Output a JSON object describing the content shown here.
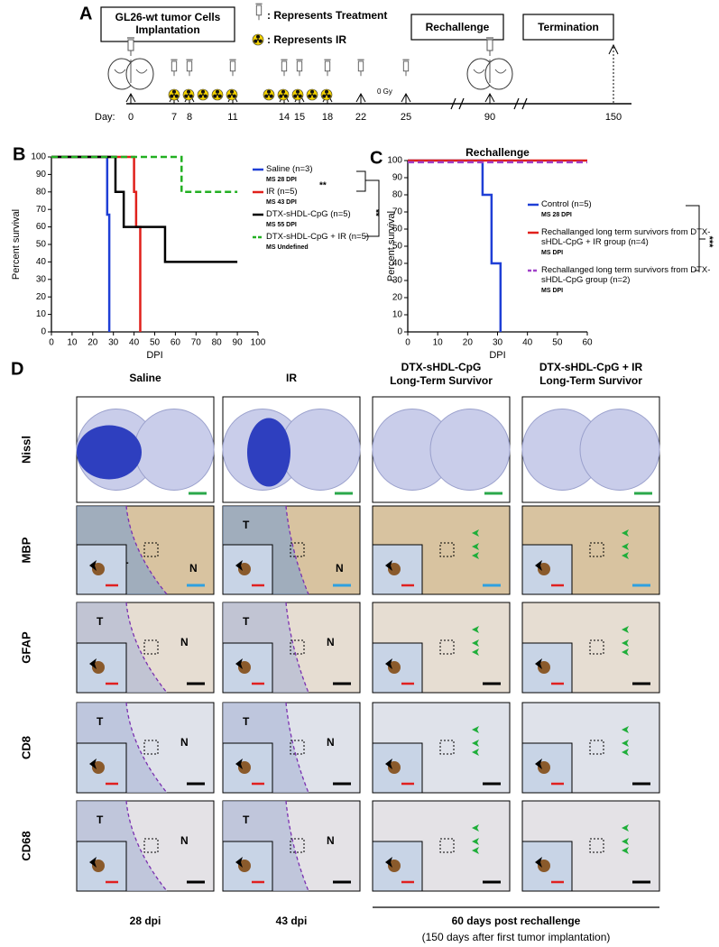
{
  "panel_a": {
    "letter": "A",
    "implant": "GL26-wt tumor Cells Implantation",
    "treatment_legend": ": Represents Treatment",
    "ir_legend": ": Represents IR",
    "rechallenge": "Rechallenge",
    "termination": "Termination",
    "day_label": "Day:",
    "days": [
      0,
      7,
      8,
      11,
      14,
      15,
      18,
      22,
      25,
      90,
      150
    ],
    "dose": "0 Gy"
  },
  "chart_data": [
    {
      "type": "step",
      "letter": "B",
      "xlabel": "DPI",
      "ylabel": "Percent survival",
      "xlim": [
        0,
        100
      ],
      "xticks": [
        0,
        10,
        20,
        30,
        40,
        50,
        60,
        70,
        80,
        90,
        100
      ],
      "ylim": [
        0,
        100
      ],
      "yticks": [
        0,
        10,
        20,
        30,
        40,
        50,
        60,
        70,
        80,
        90,
        100
      ],
      "significance": [
        "**",
        "**"
      ],
      "series": [
        {
          "name": "Saline (n=3)",
          "median": "MS 28 DPI",
          "color": "#1f3fd6",
          "dashed": false,
          "x": [
            0,
            27,
            28
          ],
          "values": [
            100,
            67,
            0
          ]
        },
        {
          "name": "IR (n=5)",
          "median": "MS 43 DPI",
          "color": "#e0201b",
          "dashed": false,
          "x": [
            0,
            40,
            41,
            43
          ],
          "values": [
            100,
            80,
            60,
            0
          ]
        },
        {
          "name": "DTX-sHDL-CpG (n=5)",
          "median": "MS 55 DPI",
          "color": "#000000",
          "dashed": false,
          "x": [
            0,
            31,
            35,
            55,
            90
          ],
          "values": [
            100,
            80,
            60,
            40,
            40
          ]
        },
        {
          "name": "DTX-sHDL-CpG + IR (n=5)",
          "median": "MS Undefined",
          "color": "#22b022",
          "dashed": true,
          "x": [
            0,
            63,
            90
          ],
          "values": [
            100,
            80,
            80
          ]
        }
      ]
    },
    {
      "type": "step",
      "letter": "C",
      "title": "Rechallenge",
      "xlabel": "DPI",
      "ylabel": "Percent survival",
      "xlim": [
        0,
        60
      ],
      "xticks": [
        0,
        10,
        20,
        30,
        40,
        50,
        60
      ],
      "ylim": [
        0,
        100
      ],
      "yticks": [
        0,
        10,
        20,
        30,
        40,
        50,
        60,
        70,
        80,
        90,
        100
      ],
      "significance": [
        "***"
      ],
      "series": [
        {
          "name": "Control (n=5)",
          "median": "MS 28 DPI",
          "color": "#1f3fd6",
          "dashed": false,
          "x": [
            0,
            25,
            28,
            31
          ],
          "values": [
            100,
            80,
            40,
            0
          ]
        },
        {
          "name": "Rechallanged long term survivors from DTX-sHDL-CpG + IR group (n=4)",
          "median": "MS DPI",
          "color": "#e0201b",
          "dashed": false,
          "x": [
            0,
            60
          ],
          "values": [
            100,
            100
          ]
        },
        {
          "name": "Rechallanged long term survivors from DTX-sHDL-CpG  group (n=2)",
          "median": "MS DPI",
          "color": "#a040c8",
          "dashed": true,
          "x": [
            0,
            60
          ],
          "values": [
            99,
            99
          ]
        }
      ]
    }
  ],
  "panel_d": {
    "letter": "D",
    "columns": [
      [
        "Saline"
      ],
      [
        "IR"
      ],
      [
        "DTX-sHDL-CpG",
        "Long-Term Survivor"
      ],
      [
        "DTX-sHDL-CpG + IR",
        "Long-Term Survivor"
      ]
    ],
    "rows": [
      "Nissl",
      "MBP",
      "GFAP",
      "CD8",
      "CD68"
    ],
    "regions": [
      "T",
      "N"
    ],
    "footer": [
      "28 dpi",
      "43 dpi",
      "60 days post rechallenge",
      "(150 days after first tumor implantation)"
    ]
  }
}
